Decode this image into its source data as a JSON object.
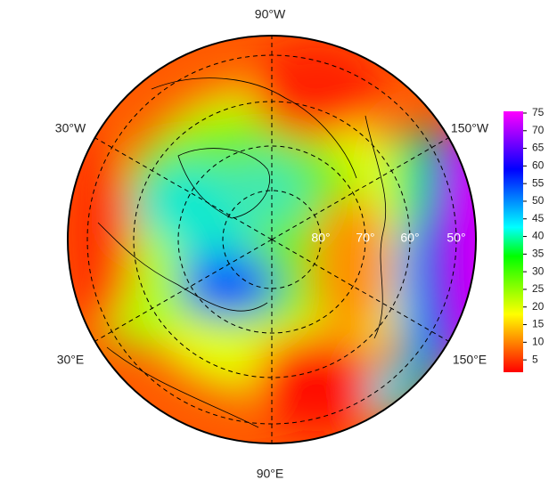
{
  "map": {
    "longitude_labels": {
      "top": "90°W",
      "upper_left": "30°W",
      "upper_right": "150°W",
      "lower_left": "30°E",
      "lower_right": "150°E",
      "bottom": "90°E"
    },
    "latitude_labels": [
      "80°",
      "70°",
      "60°",
      "50°"
    ],
    "colorbar": {
      "lim": [
        1.5,
        75.5
      ],
      "ticks": [
        5,
        10,
        15,
        20,
        25,
        30,
        35,
        40,
        45,
        50,
        55,
        60,
        65,
        70,
        75
      ],
      "colors": [
        "#ff0000",
        "#ff8000",
        "#ffff00",
        "#80ff00",
        "#00ff00",
        "#00ffff",
        "#0080ff",
        "#0000ff",
        "#8000ff",
        "#ff00ff"
      ]
    }
  }
}
